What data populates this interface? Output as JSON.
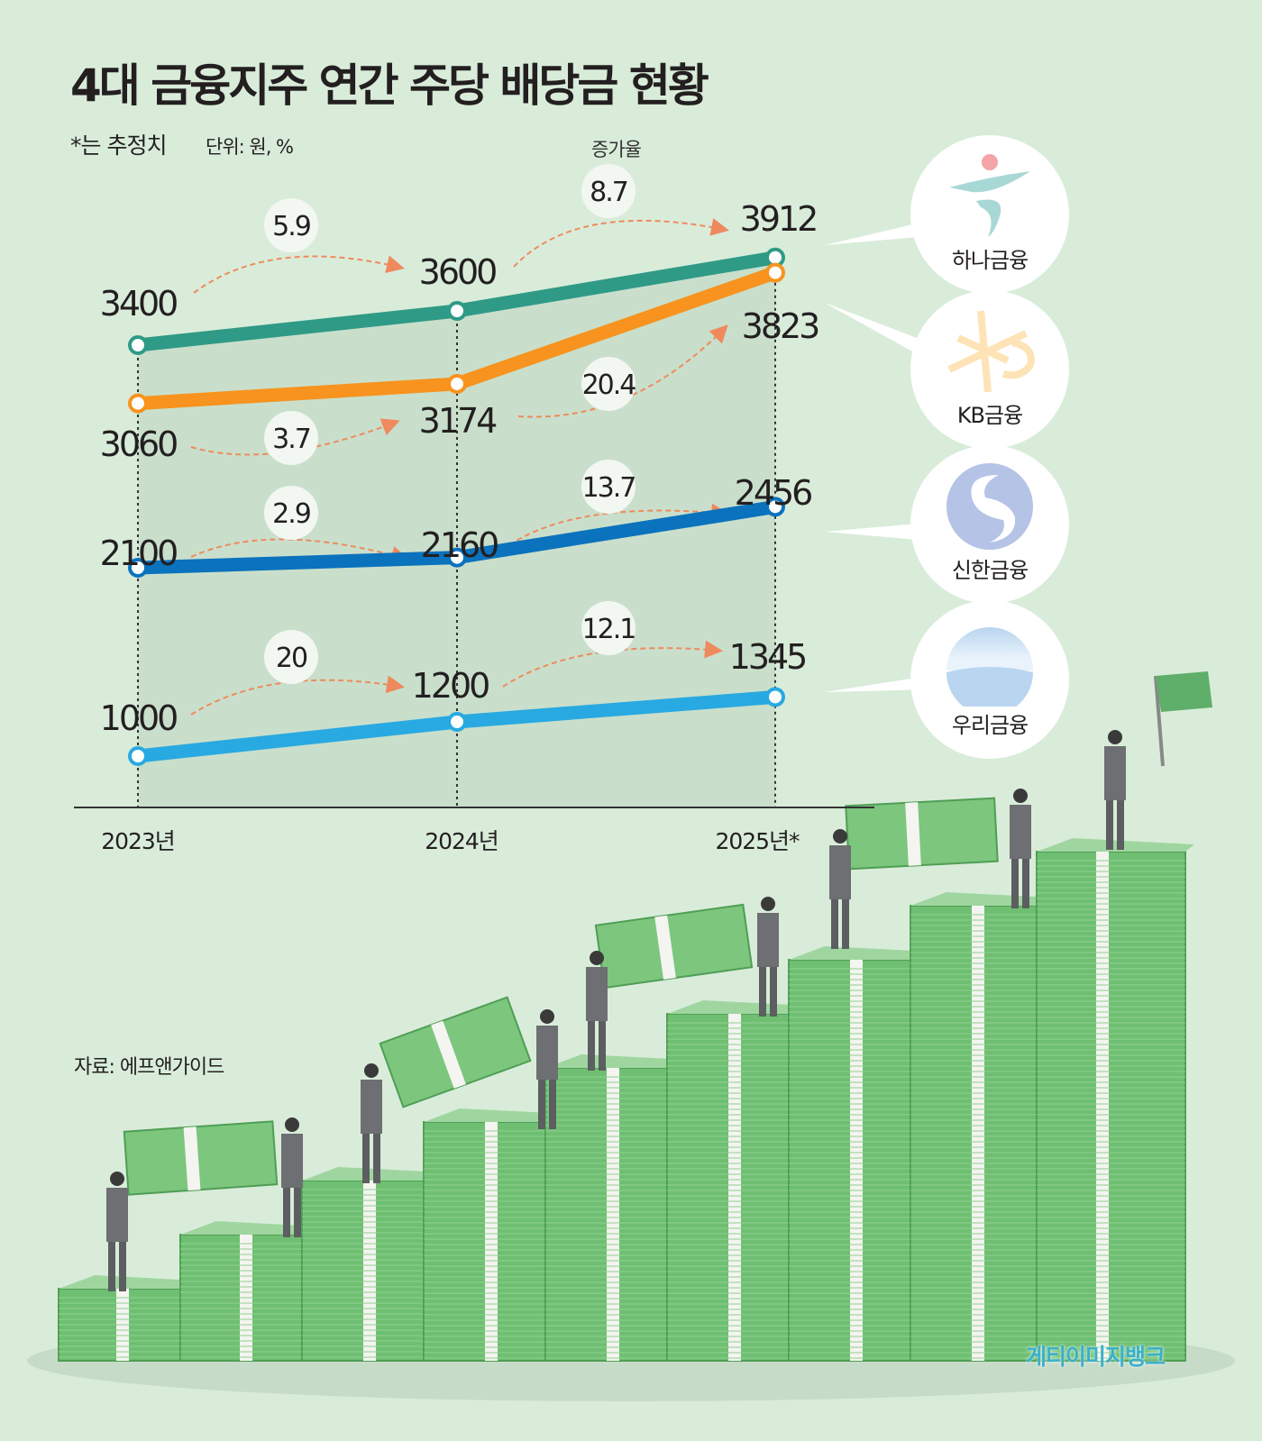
{
  "title": "4대 금융지주 연간 주당 배당금 현황",
  "note": "*는 추정치",
  "unit": "단위: 원, %",
  "growth_label": "증가율",
  "source": "자료: 에프앤가이드",
  "watermark": "게티이미지뱅크",
  "logos": [
    {
      "name": "하나금융",
      "icon": "hana-logo-icon"
    },
    {
      "name": "KB금융",
      "icon": "kb-star-logo-icon"
    },
    {
      "name": "신한금융",
      "icon": "shinhan-logo-icon"
    },
    {
      "name": "우리금융",
      "icon": "woori-logo-icon"
    }
  ],
  "chart_data": {
    "type": "line",
    "title": "4대 금융지주 연간 주당 배당금 현황",
    "categories": [
      "2023년",
      "2024년",
      "2025년*"
    ],
    "ylabel": "단위: 원, %",
    "grid": false,
    "series": [
      {
        "name": "하나금융",
        "values": [
          3400,
          3600,
          3912
        ],
        "labels": [
          "3400",
          "3600",
          "3912"
        ],
        "growth": [
          "5.9",
          "8.7"
        ],
        "color": "#2f9a86"
      },
      {
        "name": "KB금융",
        "values": [
          3060,
          3174,
          3823
        ],
        "labels": [
          "3060",
          "3174",
          "3823"
        ],
        "growth": [
          "3.7",
          "20.4"
        ],
        "color": "#f7931e"
      },
      {
        "name": "신한금융",
        "values": [
          2100,
          2160,
          2456
        ],
        "labels": [
          "2100",
          "2160",
          "2456"
        ],
        "growth": [
          "2.9",
          "13.7"
        ],
        "color": "#0b72bd"
      },
      {
        "name": "우리금융",
        "values": [
          1000,
          1200,
          1345
        ],
        "labels": [
          "1000",
          "1200",
          "1345"
        ],
        "growth": [
          "20",
          "12.1"
        ],
        "color": "#29a9e1"
      }
    ]
  }
}
